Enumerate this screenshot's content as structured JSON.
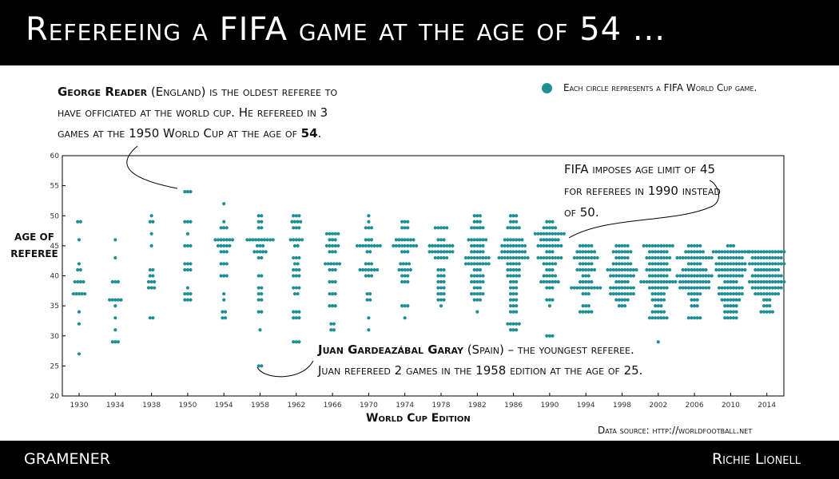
{
  "header": {
    "title": "Refereeing a FIFA game at the age of 54 ..."
  },
  "footer": {
    "left": "GRAMENER",
    "right": "Richie Lionell"
  },
  "legend": {
    "text": "Each circle represents a FIFA World Cup game.",
    "color": "#1e8f94"
  },
  "annotations": {
    "oldest": {
      "name": "George Reader",
      "rest": " (England) is the oldest referee to have officiated at the world cup. He refereed in 3 games at the 1950 World Cup at the age of ",
      "age": "54",
      "end": "."
    },
    "youngest": {
      "name": "Juan Gardeazábal Garay",
      "rest": " (Spain) – the youngest referee.",
      "line2": "Juan refereed 2 games in the 1958 edition at the age of 25."
    },
    "limit": {
      "text": "FIFA imposes age limit of 45 for referees in 1990 instead of 50."
    }
  },
  "source": "Data source: http://worldfootball.net",
  "chart_data": {
    "type": "scatter",
    "title": "",
    "xlabel": "World Cup Edition",
    "ylabel": "AGE OF REFEREE",
    "ylim": [
      20,
      60
    ],
    "yticks": [
      20,
      25,
      30,
      35,
      40,
      45,
      50,
      55,
      60
    ],
    "grid": false,
    "marker_color": "#1e8f94",
    "categories": [
      "1930",
      "1934",
      "1938",
      "1950",
      "1954",
      "1958",
      "1962",
      "1966",
      "1970",
      "1974",
      "1978",
      "1982",
      "1986",
      "1990",
      "1994",
      "1998",
      "2002",
      "2006",
      "2010",
      "2014"
    ],
    "games_by_age": {
      "1930": {
        "49": 2,
        "46": 1,
        "42": 1,
        "41": 2,
        "39": 4,
        "37": 5,
        "34": 1,
        "32": 1,
        "27": 1
      },
      "1934": {
        "46": 1,
        "43": 1,
        "39": 3,
        "36": 5,
        "35": 1,
        "33": 1,
        "31": 1,
        "29": 3
      },
      "1938": {
        "50": 1,
        "49": 2,
        "47": 1,
        "45": 1,
        "41": 2,
        "40": 2,
        "39": 3,
        "38": 3,
        "33": 2
      },
      "1950": {
        "54": 3,
        "49": 3,
        "47": 1,
        "45": 3,
        "42": 3,
        "41": 3,
        "38": 1,
        "37": 3,
        "36": 3
      },
      "1954": {
        "52": 1,
        "49": 1,
        "48": 3,
        "46": 7,
        "45": 5,
        "44": 3,
        "42": 3,
        "40": 3,
        "37": 1,
        "36": 1,
        "34": 2,
        "33": 2
      },
      "1958": {
        "50": 2,
        "49": 2,
        "48": 2,
        "46": 10,
        "45": 3,
        "44": 5,
        "43": 2,
        "40": 2,
        "38": 2,
        "37": 2,
        "36": 2,
        "34": 2,
        "31": 1,
        "25": 2
      },
      "1962": {
        "50": 3,
        "49": 4,
        "48": 3,
        "46": 5,
        "45": 2,
        "43": 3,
        "42": 2,
        "41": 3,
        "40": 3,
        "38": 3,
        "37": 2,
        "34": 3,
        "33": 3,
        "29": 3
      },
      "1966": {
        "47": 5,
        "46": 3,
        "45": 5,
        "44": 3,
        "42": 6,
        "41": 3,
        "39": 3,
        "37": 3,
        "35": 3,
        "32": 2,
        "31": 2
      },
      "1970": {
        "50": 1,
        "49": 1,
        "48": 3,
        "46": 3,
        "45": 9,
        "44": 2,
        "42": 3,
        "41": 7,
        "40": 3,
        "37": 2,
        "36": 2,
        "33": 1,
        "31": 1
      },
      "1974": {
        "49": 3,
        "48": 3,
        "46": 7,
        "45": 9,
        "44": 3,
        "42": 4,
        "41": 5,
        "40": 3,
        "39": 3,
        "35": 3,
        "33": 1
      },
      "1978": {
        "48": 5,
        "46": 3,
        "45": 9,
        "44": 9,
        "43": 5,
        "41": 3,
        "40": 3,
        "39": 3,
        "38": 3,
        "37": 3,
        "36": 3,
        "35": 1
      },
      "1982": {
        "50": 3,
        "49": 3,
        "48": 5,
        "46": 7,
        "45": 5,
        "44": 5,
        "43": 9,
        "42": 9,
        "41": 3,
        "40": 5,
        "39": 5,
        "38": 3,
        "37": 5,
        "36": 3,
        "34": 1
      },
      "1986": {
        "50": 3,
        "49": 3,
        "48": 5,
        "46": 7,
        "45": 9,
        "44": 9,
        "43": 11,
        "42": 5,
        "41": 5,
        "40": 5,
        "39": 3,
        "38": 3,
        "37": 3,
        "36": 3,
        "35": 3,
        "34": 3,
        "32": 5,
        "31": 3
      },
      "1990": {
        "49": 3,
        "48": 5,
        "47": 11,
        "46": 7,
        "45": 9,
        "44": 3,
        "43": 9,
        "42": 5,
        "41": 3,
        "40": 5,
        "39": 7,
        "38": 3,
        "36": 3,
        "35": 1,
        "30": 3
      },
      "1994": {
        "45": 5,
        "44": 7,
        "43": 9,
        "42": 5,
        "41": 7,
        "40": 3,
        "39": 5,
        "38": 11,
        "37": 3,
        "35": 3,
        "34": 5
      },
      "1998": {
        "45": 5,
        "44": 7,
        "43": 5,
        "42": 7,
        "41": 11,
        "40": 9,
        "39": 5,
        "38": 9,
        "37": 9,
        "36": 5,
        "35": 3
      },
      "2002": {
        "45": 11,
        "44": 7,
        "43": 9,
        "42": 7,
        "41": 9,
        "40": 7,
        "39": 13,
        "38": 7,
        "37": 5,
        "36": 5,
        "35": 3,
        "34": 5,
        "33": 7,
        "29": 1
      },
      "2006": {
        "45": 5,
        "44": 7,
        "43": 13,
        "42": 5,
        "41": 9,
        "40": 13,
        "39": 11,
        "38": 11,
        "37": 5,
        "36": 3,
        "35": 3,
        "33": 5
      },
      "2010": {
        "45": 3,
        "44": 13,
        "43": 9,
        "42": 11,
        "41": 11,
        "40": 9,
        "39": 5,
        "38": 9,
        "37": 9,
        "36": 7,
        "35": 5,
        "34": 5,
        "33": 5
      },
      "2014": {
        "44": 13,
        "43": 11,
        "42": 13,
        "41": 9,
        "40": 11,
        "39": 13,
        "38": 11,
        "37": 9,
        "36": 3,
        "35": 3,
        "34": 5
      }
    }
  }
}
